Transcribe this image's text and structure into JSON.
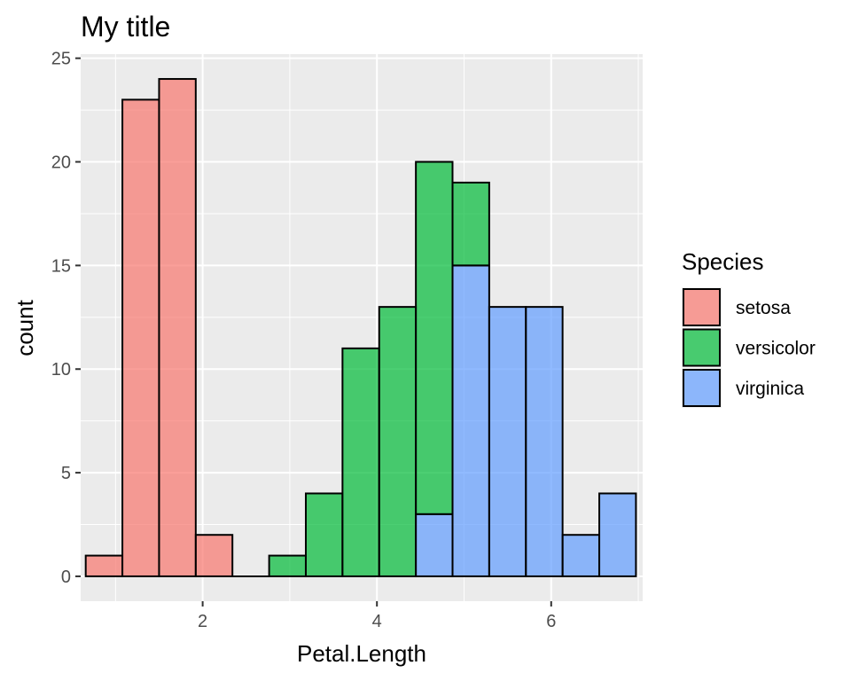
{
  "chart_data": {
    "type": "bar",
    "subtype": "stacked-histogram",
    "title": "My title",
    "xlabel": "Petal.Length",
    "ylabel": "count",
    "xlim": [
      0.6,
      7.05
    ],
    "ylim": [
      -1.2,
      25.2
    ],
    "x_ticks": [
      2,
      4,
      6
    ],
    "y_ticks": [
      0,
      5,
      10,
      15,
      20,
      25
    ],
    "grid": true,
    "legend": {
      "title": "Species",
      "position": "right"
    },
    "bin_starts": [
      0.658,
      1.079,
      1.5,
      1.921,
      2.342,
      2.763,
      3.184,
      3.605,
      4.026,
      4.447,
      4.868,
      5.289,
      5.71,
      6.131,
      6.552
    ],
    "bin_width": 0.4207,
    "series": [
      {
        "name": "setosa",
        "color": "#F8766D",
        "values": [
          1,
          23,
          24,
          2,
          0,
          0,
          0,
          0,
          0,
          0,
          0,
          0,
          0,
          0,
          0
        ]
      },
      {
        "name": "versicolor",
        "color": "#00BA38",
        "values": [
          0,
          0,
          0,
          0,
          0,
          1,
          4,
          11,
          13,
          17,
          4,
          0,
          0,
          0,
          0
        ]
      },
      {
        "name": "virginica",
        "color": "#619CFF",
        "values": [
          0,
          0,
          0,
          0,
          0,
          0,
          0,
          0,
          0,
          3,
          15,
          13,
          13,
          2,
          4
        ]
      }
    ]
  }
}
